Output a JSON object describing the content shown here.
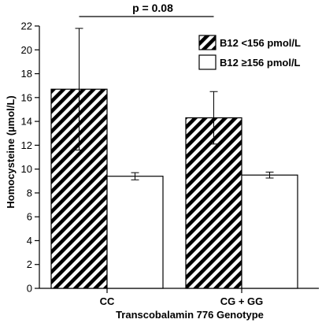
{
  "chart_data": {
    "type": "bar",
    "xlabel": "Transcobalamin 776 Genotype",
    "ylabel": "Homocysteine (µmol/L)",
    "ylim": [
      0,
      22
    ],
    "yticks": [
      0,
      2,
      4,
      6,
      8,
      10,
      12,
      14,
      16,
      18,
      20,
      22
    ],
    "categories": [
      "CC",
      "CG + GG"
    ],
    "series": [
      {
        "name": "B12 <156 pmol/L",
        "pattern": "diagonal-hatch",
        "values": [
          16.7,
          14.3
        ],
        "error": [
          5.1,
          2.2
        ]
      },
      {
        "name": "B12 ≥156 pmol/L",
        "pattern": "white",
        "values": [
          9.4,
          9.5
        ],
        "error": [
          0.3,
          0.25
        ]
      }
    ],
    "legend_position": "top-right",
    "annotation": {
      "text": "p = 0.08",
      "spans": "between the B12 <156 pmol/L bars of CC and CG + GG"
    },
    "grid": false
  }
}
